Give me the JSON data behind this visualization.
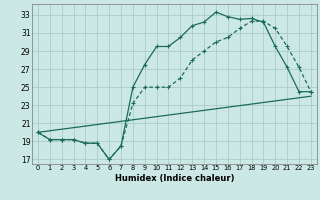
{
  "xlabel": "Humidex (Indice chaleur)",
  "bg_color": "#cce8e4",
  "grid_color": "#aaccca",
  "line_color": "#1a6b5a",
  "xlim": [
    -0.5,
    23.5
  ],
  "ylim": [
    16.5,
    34.2
  ],
  "yticks": [
    17,
    19,
    21,
    23,
    25,
    27,
    29,
    31,
    33
  ],
  "xticks": [
    0,
    1,
    2,
    3,
    4,
    5,
    6,
    7,
    8,
    9,
    10,
    11,
    12,
    13,
    14,
    15,
    16,
    17,
    18,
    19,
    20,
    21,
    22,
    23
  ],
  "line1_x": [
    0,
    1,
    2,
    3,
    4,
    5,
    6,
    7,
    8,
    9,
    10,
    11,
    12,
    13,
    14,
    15,
    16,
    17,
    18,
    19,
    20,
    21,
    22,
    23
  ],
  "line1_y": [
    20.0,
    19.2,
    19.2,
    19.2,
    18.8,
    18.8,
    17.0,
    18.5,
    25.0,
    27.5,
    29.5,
    29.5,
    30.5,
    31.8,
    32.2,
    33.3,
    32.8,
    32.5,
    32.6,
    32.2,
    29.5,
    27.2,
    24.5,
    24.5
  ],
  "line2_x": [
    0,
    1,
    2,
    3,
    4,
    5,
    6,
    7,
    8,
    9,
    10,
    11,
    12,
    13,
    14,
    15,
    16,
    17,
    18,
    19,
    20,
    21,
    22,
    23
  ],
  "line2_y": [
    20.0,
    19.2,
    19.2,
    19.2,
    18.8,
    18.8,
    17.0,
    18.5,
    23.2,
    25.0,
    25.0,
    25.0,
    26.0,
    28.0,
    29.0,
    30.0,
    30.5,
    31.5,
    32.3,
    32.3,
    31.5,
    29.5,
    27.2,
    24.5
  ],
  "line3_x": [
    0,
    23
  ],
  "line3_y": [
    20.0,
    24.0
  ]
}
